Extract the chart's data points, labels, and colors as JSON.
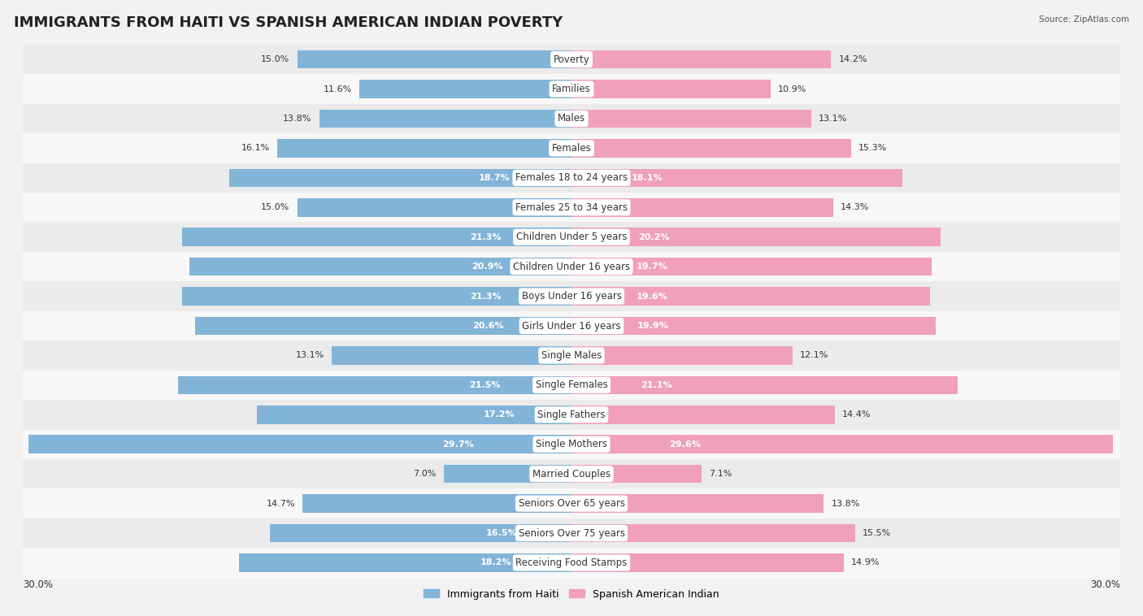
{
  "title": "IMMIGRANTS FROM HAITI VS SPANISH AMERICAN INDIAN POVERTY",
  "source": "Source: ZipAtlas.com",
  "categories": [
    "Poverty",
    "Families",
    "Males",
    "Females",
    "Females 18 to 24 years",
    "Females 25 to 34 years",
    "Children Under 5 years",
    "Children Under 16 years",
    "Boys Under 16 years",
    "Girls Under 16 years",
    "Single Males",
    "Single Females",
    "Single Fathers",
    "Single Mothers",
    "Married Couples",
    "Seniors Over 65 years",
    "Seniors Over 75 years",
    "Receiving Food Stamps"
  ],
  "haiti_values": [
    15.0,
    11.6,
    13.8,
    16.1,
    18.7,
    15.0,
    21.3,
    20.9,
    21.3,
    20.6,
    13.1,
    21.5,
    17.2,
    29.7,
    7.0,
    14.7,
    16.5,
    18.2
  ],
  "spanish_values": [
    14.2,
    10.9,
    13.1,
    15.3,
    18.1,
    14.3,
    20.2,
    19.7,
    19.6,
    19.9,
    12.1,
    21.1,
    14.4,
    29.6,
    7.1,
    13.8,
    15.5,
    14.9
  ],
  "haiti_color": "#82b4d8",
  "spanish_color": "#f0a0b8",
  "haiti_label": "Immigrants from Haiti",
  "spanish_label": "Spanish American Indian",
  "x_max": 30.0,
  "row_bg_odd": "#ebebeb",
  "row_bg_even": "#f7f7f7",
  "background_color": "#f2f2f2",
  "title_fontsize": 13,
  "label_fontsize": 8.5,
  "value_fontsize": 8,
  "axis_label_fontsize": 8.5,
  "white_text_threshold": 16.5
}
